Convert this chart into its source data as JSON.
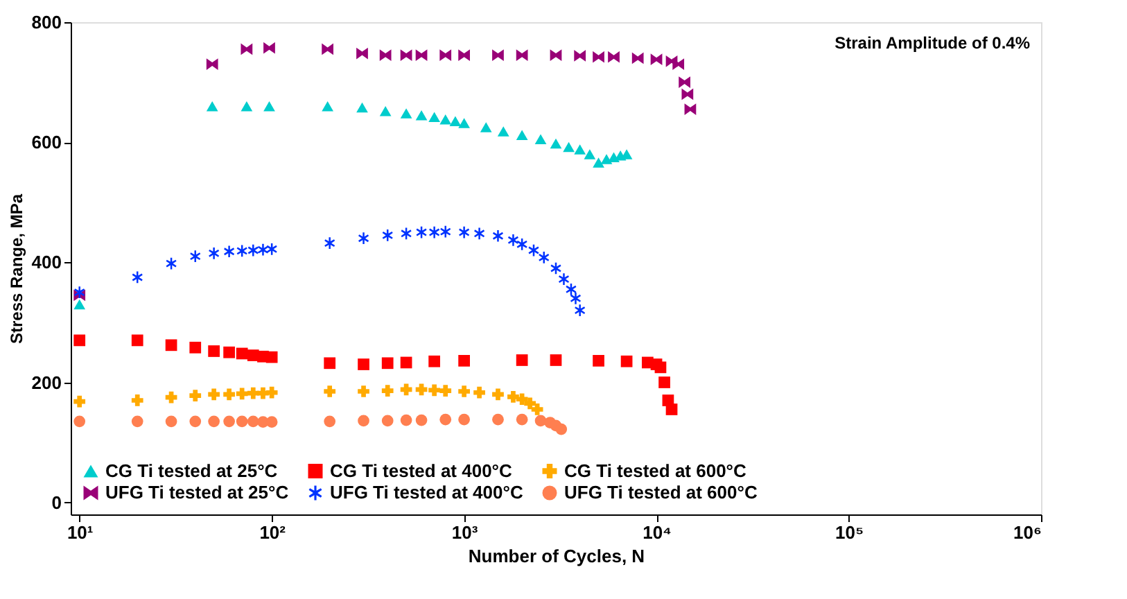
{
  "chart_data": {
    "type": "scatter",
    "xlabel": "Number of Cycles, N",
    "ylabel": "Stress Range, MPa",
    "annotations": [
      "Strain Amplitude of 0.4%"
    ],
    "log": "x",
    "grid": false,
    "legend": "bottom left",
    "xlim": [
      9,
      1000000
    ],
    "ylim": [
      -20,
      800
    ],
    "xticks": [
      {
        "value": 10,
        "label": "10¹"
      },
      {
        "value": 100,
        "label": "10²"
      },
      {
        "value": 1000,
        "label": "10³"
      },
      {
        "value": 10000,
        "label": "10⁴"
      },
      {
        "value": 100000,
        "label": "10⁵"
      },
      {
        "value": 1000000,
        "label": "10⁶"
      }
    ],
    "yticks": [
      0,
      200,
      400,
      600,
      800
    ],
    "series": [
      {
        "name": "CG Ti tested at 25°C",
        "color": "#00cccc",
        "marker": "triangle",
        "x": [
          10,
          49,
          74,
          97,
          195,
          295,
          390,
          500,
          600,
          700,
          800,
          900,
          1000,
          1300,
          1600,
          2000,
          2500,
          3000,
          3500,
          4000,
          4500,
          5000,
          5500,
          6000,
          6500,
          7000
        ],
        "values": [
          330,
          660,
          660,
          660,
          660,
          658,
          652,
          648,
          645,
          642,
          638,
          635,
          632,
          625,
          618,
          612,
          605,
          598,
          592,
          588,
          580,
          566,
          572,
          575,
          578,
          580
        ]
      },
      {
        "name": "CG Ti tested at 400°C",
        "color": "#ff0000",
        "marker": "square",
        "x": [
          10,
          20,
          30,
          40,
          50,
          60,
          70,
          80,
          90,
          100,
          200,
          300,
          400,
          500,
          700,
          1000,
          2000,
          3000,
          5000,
          7000,
          9000,
          10000,
          10500,
          11000,
          11500,
          12000
        ],
        "values": [
          270,
          270,
          262,
          258,
          252,
          250,
          248,
          245,
          243,
          242,
          232,
          230,
          232,
          233,
          235,
          236,
          237,
          237,
          236,
          235,
          233,
          230,
          225,
          200,
          170,
          155
        ]
      },
      {
        "name": "CG Ti tested at 600°C",
        "color": "#ffaa00",
        "marker": "cross",
        "x": [
          10,
          20,
          30,
          40,
          50,
          60,
          70,
          80,
          90,
          100,
          200,
          300,
          400,
          500,
          600,
          700,
          800,
          1000,
          1200,
          1500,
          1800,
          2000,
          2200,
          2400
        ],
        "values": [
          168,
          170,
          175,
          178,
          180,
          180,
          181,
          182,
          182,
          183,
          185,
          185,
          186,
          188,
          188,
          187,
          186,
          185,
          183,
          180,
          176,
          172,
          165,
          155
        ]
      },
      {
        "name": "UFG Ti tested at 25°C",
        "color": "#990077",
        "marker": "diamond",
        "x": [
          10,
          49,
          74,
          97,
          195,
          295,
          390,
          500,
          600,
          800,
          1000,
          1500,
          2000,
          3000,
          4000,
          5000,
          6000,
          8000,
          10000,
          12000,
          13000,
          14000,
          14500,
          15000
        ],
        "values": [
          345,
          730,
          755,
          757,
          755,
          748,
          745,
          745,
          745,
          745,
          745,
          745,
          745,
          745,
          744,
          742,
          742,
          740,
          738,
          735,
          730,
          700,
          680,
          655
        ]
      },
      {
        "name": "UFG Ti tested at 400°C",
        "color": "#0033ff",
        "marker": "star",
        "x": [
          10,
          20,
          30,
          40,
          50,
          60,
          70,
          80,
          90,
          100,
          200,
          300,
          400,
          500,
          600,
          700,
          800,
          1000,
          1200,
          1500,
          1800,
          2000,
          2300,
          2600,
          3000,
          3300,
          3600,
          3800,
          4000
        ],
        "values": [
          350,
          375,
          398,
          410,
          415,
          418,
          419,
          420,
          421,
          422,
          432,
          440,
          445,
          448,
          450,
          450,
          451,
          450,
          448,
          444,
          437,
          430,
          420,
          408,
          390,
          372,
          355,
          340,
          320
        ]
      },
      {
        "name": "UFG Ti tested at 600°C",
        "color": "#ff7f50",
        "marker": "circle",
        "x": [
          10,
          20,
          30,
          40,
          50,
          60,
          70,
          80,
          90,
          100,
          200,
          300,
          400,
          500,
          600,
          800,
          1000,
          1500,
          2000,
          2500,
          2800,
          3000,
          3200
        ],
        "values": [
          135,
          135,
          135,
          135,
          135,
          135,
          135,
          135,
          134,
          134,
          135,
          136,
          136,
          137,
          137,
          138,
          138,
          138,
          138,
          136,
          133,
          128,
          122
        ]
      }
    ]
  }
}
